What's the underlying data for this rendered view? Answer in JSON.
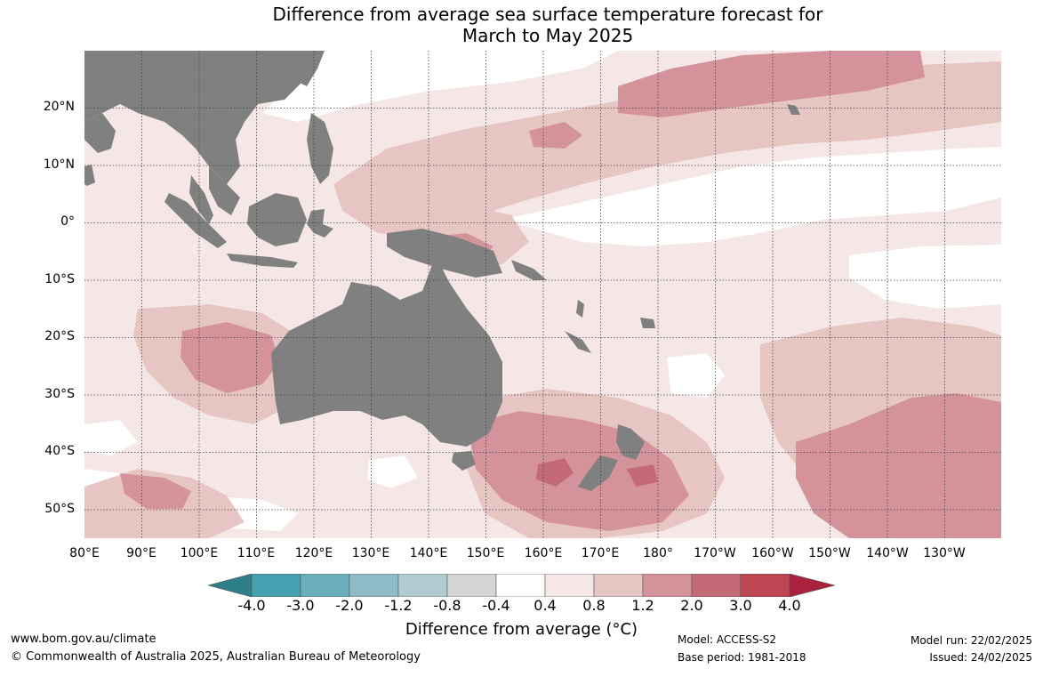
{
  "title_line1": "Difference from average sea surface temperature forecast for",
  "title_line2": "March to May 2025",
  "lat_labels": [
    "20°N",
    "10°N",
    "0°",
    "10°S",
    "20°S",
    "30°S",
    "40°S",
    "50°S"
  ],
  "lon_labels": [
    "80°E",
    "90°E",
    "100°E",
    "110°E",
    "120°E",
    "130°E",
    "140°E",
    "150°E",
    "160°E",
    "170°E",
    "180°",
    "170°W",
    "160°W",
    "150°W",
    "140°W",
    "130°W"
  ],
  "colorbar": {
    "labels": [
      "-4.0",
      "-3.0",
      "-2.0",
      "-1.2",
      "-0.8",
      "-0.4",
      "0.4",
      "0.8",
      "1.2",
      "2.0",
      "3.0",
      "4.0"
    ],
    "colors": [
      "#2f7f8b",
      "#45a0b0",
      "#6aadbb",
      "#8fbcc4",
      "#b0ccd0",
      "#d3d4d5",
      "#ffffff",
      "#f5e7e6",
      "#e6c5c3",
      "#d4939b",
      "#c46a77",
      "#bd4652",
      "#a8213d"
    ],
    "title": "Difference from average (°C)"
  },
  "colors": {
    "land": "#808080",
    "ocean_band_08": "#f5e7e6",
    "ocean_band_12": "#e6c5c3",
    "ocean_band_20": "#d4939b",
    "ocean_band_30": "#c46a77"
  },
  "footer": {
    "url": "www.bom.gov.au/climate",
    "copyright": "© Commonwealth of Australia 2025, Australian Bureau of Meteorology",
    "model": "Model: ACCESS-S2",
    "base_period": "Base period: 1981-2018",
    "model_run": "Model run: 22/02/2025",
    "issued": "Issued: 24/02/2025"
  }
}
